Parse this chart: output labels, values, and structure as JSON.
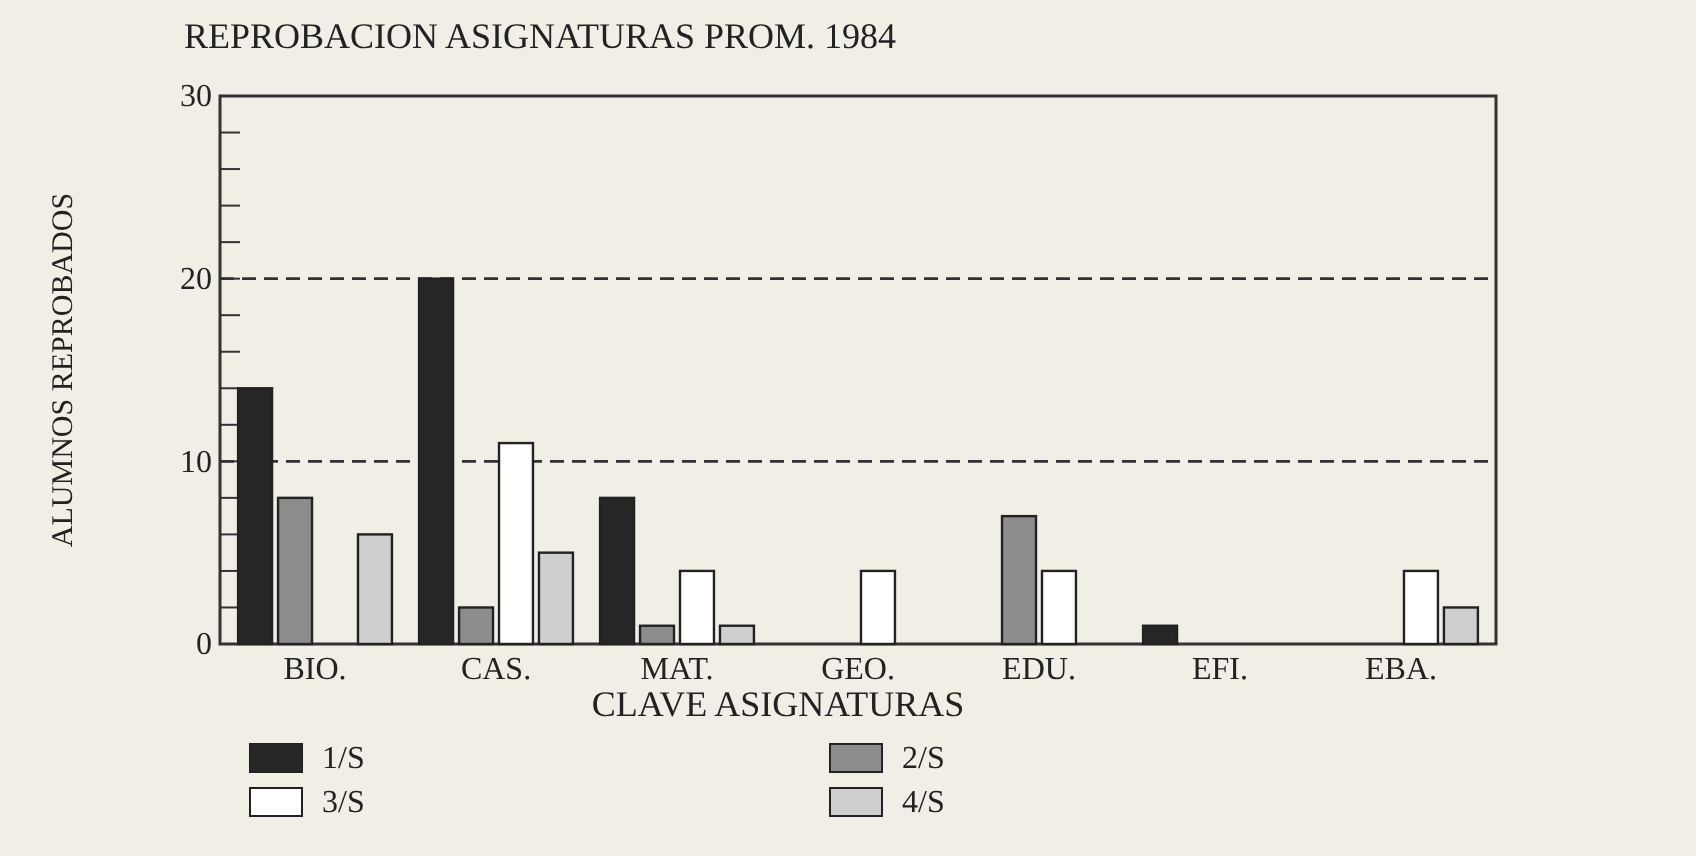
{
  "chart_data": {
    "type": "bar",
    "title": "REPROBACION ASIGNATURAS PROM. 1984",
    "xlabel": "CLAVE ASIGNATURAS",
    "ylabel": "ALUMNOS REPROBADOS",
    "categories": [
      "BIO.",
      "CAS.",
      "MAT.",
      "GEO.",
      "EDU.",
      "EFI.",
      "EBA."
    ],
    "series": [
      {
        "name": "1/S",
        "color": "#262626",
        "values": [
          14,
          20,
          8,
          null,
          null,
          1,
          null
        ]
      },
      {
        "name": "2/S",
        "color": "#8c8c8c",
        "values": [
          8,
          2,
          1,
          null,
          7,
          null,
          null
        ]
      },
      {
        "name": "3/S",
        "color": "#ffffff",
        "values": [
          null,
          11,
          4,
          4,
          4,
          null,
          4
        ]
      },
      {
        "name": "4/S",
        "color": "#cfcfcf",
        "values": [
          6,
          5,
          1,
          null,
          null,
          null,
          2
        ]
      }
    ],
    "ylim": [
      0,
      30
    ],
    "yticks": [
      0,
      {
        "value": 2,
        "label": null
      },
      {
        "value": 4,
        "label": null
      },
      {
        "value": 6,
        "label": null
      },
      {
        "value": 8,
        "label": null
      },
      10,
      {
        "value": 12,
        "label": null
      },
      {
        "value": 14,
        "label": null
      },
      {
        "value": 16,
        "label": null
      },
      {
        "value": 18,
        "label": null
      },
      20,
      {
        "value": 22,
        "label": null
      },
      {
        "value": 24,
        "label": null
      },
      {
        "value": 26,
        "label": null
      },
      {
        "value": 28,
        "label": null
      },
      30
    ],
    "ref_lines": [
      {
        "axis": "y",
        "value": 10,
        "line_style": "dashed"
      },
      {
        "axis": "y",
        "value": 20,
        "line_style": "dashed"
      }
    ],
    "legend": "bottom left"
  }
}
